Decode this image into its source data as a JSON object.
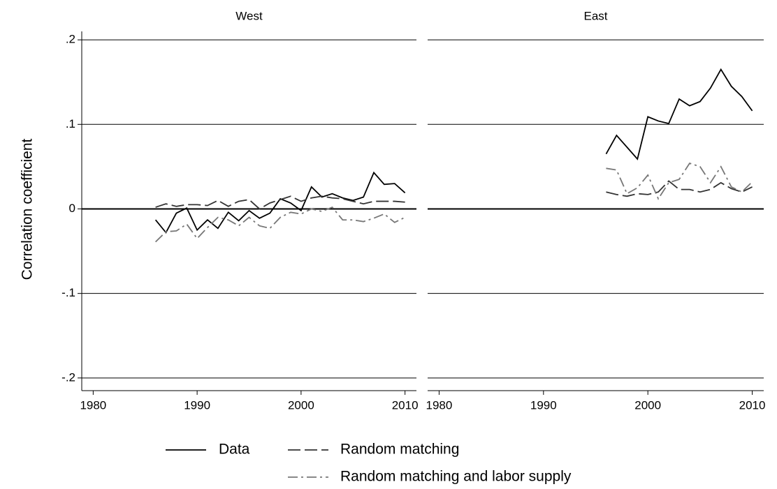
{
  "chart_data": {
    "type": "line",
    "ylabel": "Correlation coefficient",
    "xlim": [
      1978.9,
      2011.1
    ],
    "xticks": [
      1980,
      1990,
      2000,
      2010
    ],
    "ylim": [
      -0.215,
      0.21
    ],
    "yticks": [
      {
        "value": -0.2,
        "label": "-.2"
      },
      {
        "value": -0.1,
        "label": "-.1"
      },
      0,
      {
        "value": 0.1,
        "label": ".1"
      },
      {
        "value": 0.2,
        "label": ".2"
      }
    ],
    "grid": true,
    "series": [
      {
        "name": "Data",
        "color": "#000000",
        "dash": "solid"
      },
      {
        "name": "Random matching",
        "color": "#333333",
        "dash": "dash"
      },
      {
        "name": "Random matching and labor supply",
        "color": "#777777",
        "dash": "dashdot"
      }
    ],
    "panels": [
      {
        "title": "West",
        "x": [
          1986,
          1987,
          1988,
          1989,
          1990,
          1991,
          1992,
          1993,
          1994,
          1995,
          1996,
          1997,
          1998,
          1999,
          2000,
          2001,
          2002,
          2003,
          2004,
          2005,
          2006,
          2007,
          2008,
          2009,
          2010
        ],
        "series": [
          {
            "values": [
              -0.013,
              -0.028,
              -0.005,
              0.001,
              -0.025,
              -0.013,
              -0.023,
              -0.004,
              -0.014,
              -0.002,
              -0.011,
              -0.005,
              0.012,
              0.007,
              -0.002,
              0.026,
              0.014,
              0.018,
              0.013,
              0.01,
              0.014,
              0.043,
              0.029,
              0.03,
              0.019
            ]
          },
          {
            "values": [
              0.002,
              0.006,
              0.003,
              0.005,
              0.005,
              0.004,
              0.01,
              0.003,
              0.009,
              0.011,
              0.0,
              0.007,
              0.011,
              0.015,
              0.009,
              0.013,
              0.015,
              0.013,
              0.012,
              0.009,
              0.006,
              0.009,
              0.009,
              0.009,
              0.008
            ]
          },
          {
            "values": [
              -0.039,
              -0.027,
              -0.026,
              -0.018,
              -0.035,
              -0.022,
              -0.01,
              -0.013,
              -0.02,
              -0.01,
              -0.02,
              -0.023,
              -0.01,
              -0.004,
              -0.006,
              0.0,
              -0.003,
              0.002,
              -0.013,
              -0.013,
              -0.015,
              -0.011,
              -0.006,
              -0.016,
              -0.01
            ]
          }
        ]
      },
      {
        "title": "East",
        "x": [
          1996,
          1997,
          1998,
          1999,
          2000,
          2001,
          2002,
          2003,
          2004,
          2005,
          2006,
          2007,
          2008,
          2009,
          2010
        ],
        "series": [
          {
            "values": [
              0.065,
              0.087,
              0.073,
              0.059,
              0.109,
              0.104,
              0.101,
              0.13,
              0.122,
              0.127,
              0.143,
              0.165,
              0.145,
              0.133,
              0.116
            ]
          },
          {
            "values": [
              0.02,
              0.017,
              0.015,
              0.018,
              0.017,
              0.02,
              0.033,
              0.023,
              0.023,
              0.02,
              0.023,
              0.031,
              0.024,
              0.02,
              0.026
            ]
          },
          {
            "values": [
              0.048,
              0.046,
              0.018,
              0.025,
              0.04,
              0.012,
              0.031,
              0.035,
              0.054,
              0.05,
              0.031,
              0.05,
              0.026,
              0.02,
              0.032
            ]
          }
        ]
      }
    ]
  }
}
